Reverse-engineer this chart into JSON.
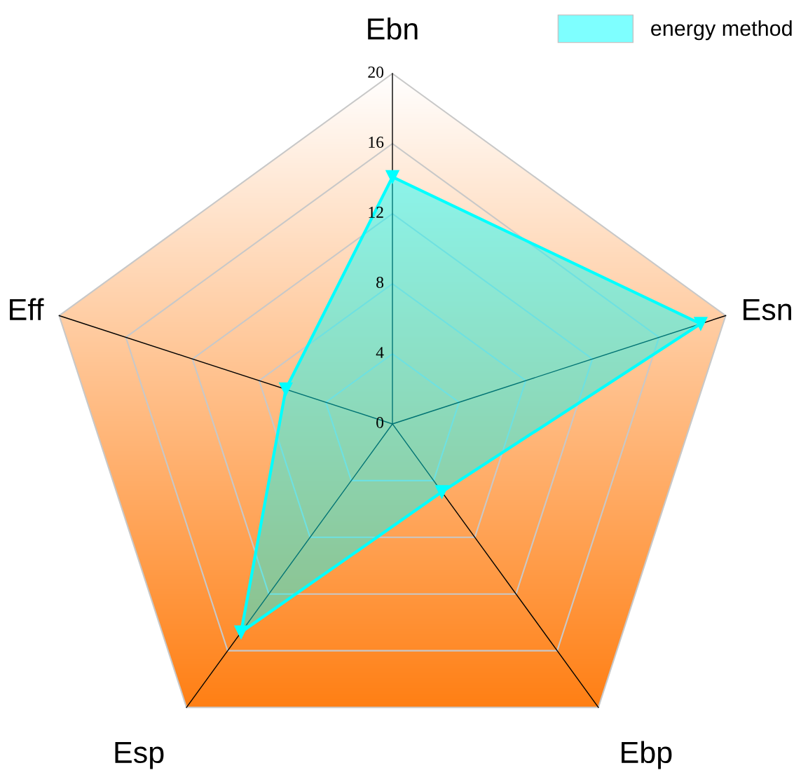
{
  "chart_data": {
    "type": "radar",
    "categories": [
      "Ebn",
      "Esn",
      "Ebp",
      "Esp",
      "Eff"
    ],
    "series": [
      {
        "name": "energy method",
        "color": "#00ffff",
        "values": [
          14.1,
          18.5,
          4.8,
          14.7,
          6.4
        ]
      }
    ],
    "ylim": [
      0,
      20
    ],
    "yticks": [
      0,
      4,
      8,
      12,
      16,
      20
    ],
    "grid": true,
    "legend": "top right",
    "marker": "triangle"
  }
}
